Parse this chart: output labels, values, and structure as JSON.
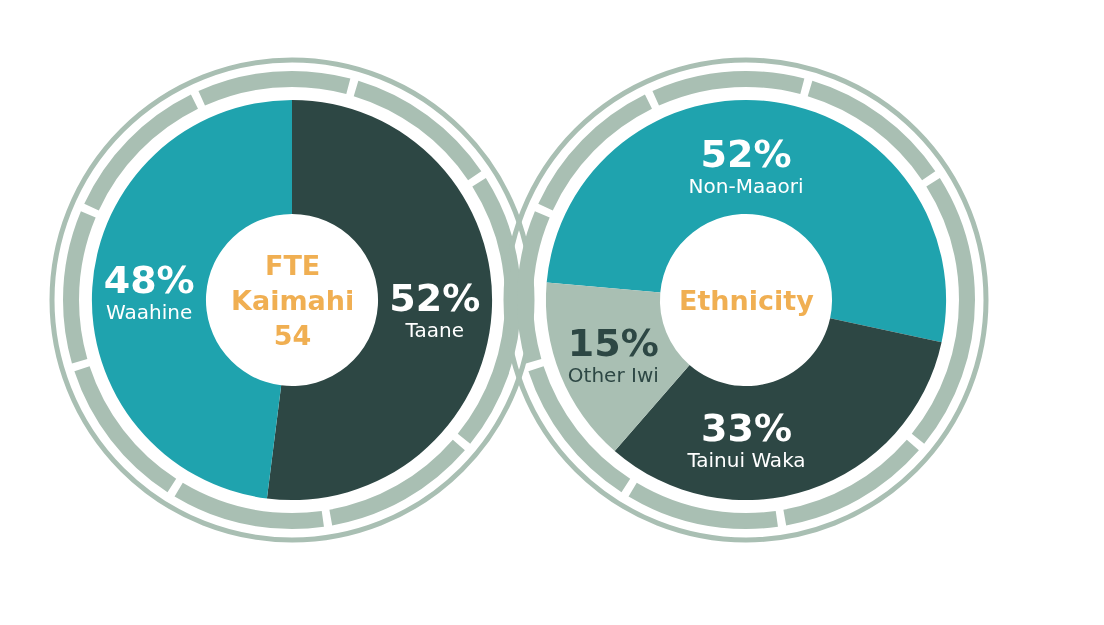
{
  "chart_data": [
    {
      "type": "donut",
      "title": "FTE Kaimahi 54",
      "categories": [
        "Taane",
        "Waahine"
      ],
      "values": [
        52,
        48
      ],
      "value_labels": [
        "52%",
        "48%"
      ],
      "colors": [
        "#2d4744",
        "#1fa3ae"
      ],
      "legend": false
    },
    {
      "type": "donut",
      "title": "Ethnicity",
      "categories": [
        "Non-Maaori",
        "Tainui Waka",
        "Other Iwi"
      ],
      "values": [
        52,
        33,
        15
      ],
      "value_labels": [
        "52%",
        "33%",
        "15%"
      ],
      "colors": [
        "#1fa3ae",
        "#2d4744",
        "#a9bfb3"
      ],
      "legend": false
    }
  ]
}
